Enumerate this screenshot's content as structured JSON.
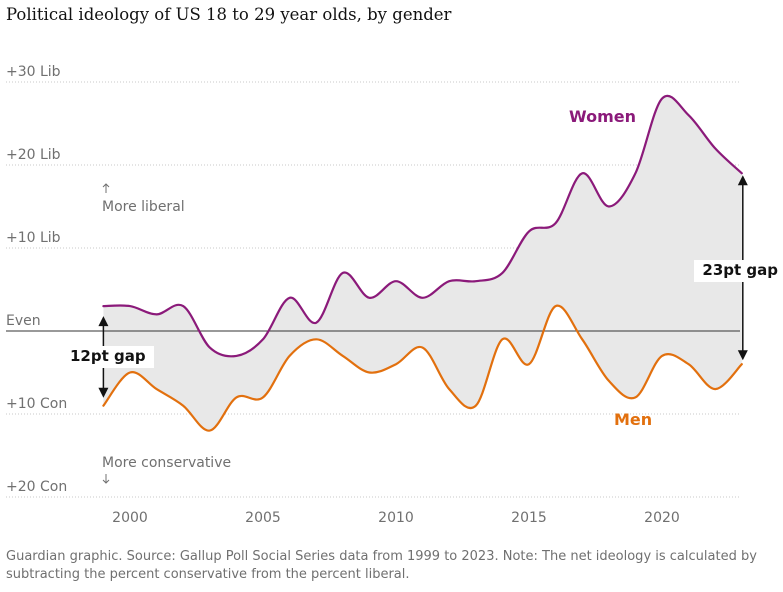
{
  "title": "Political ideology of US 18 to 29 year olds, by gender",
  "footnote": "Guardian graphic. Source: Gallup Poll Social Series data from 1999 to 2023. Note: The net ideology is calculated by subtracting the percent conservative from the percent liberal.",
  "colors": {
    "women": "#8b1a7a",
    "men": "#e2700e",
    "gap_fill": "#e8e8e8",
    "axis_text": "#707070",
    "gridline": "#c8c8c8",
    "zero_line": "#333333"
  },
  "annotations": {
    "more_liberal": "More liberal",
    "more_conservative": "More conservative",
    "gap_start": "12pt gap",
    "gap_end": "23pt gap"
  },
  "chart_data": {
    "type": "line",
    "title": "Political ideology of US 18 to 29 year olds, by gender",
    "xlabel": "",
    "ylabel": "",
    "xlim": [
      1998,
      2023.5
    ],
    "ylim": [
      -21,
      31
    ],
    "x_ticks": [
      2000,
      2005,
      2010,
      2015,
      2020
    ],
    "x_tick_labels": [
      "2000",
      "2005",
      "2010",
      "2015",
      "2020"
    ],
    "y_ticks": [
      30,
      20,
      10,
      0,
      -10,
      -20
    ],
    "y_tick_labels": [
      "+30 Lib",
      "+20 Lib",
      "+10 Lib",
      "Even",
      "+10 Con",
      "+20 Con"
    ],
    "series": [
      {
        "name": "Women",
        "x": [
          1999,
          2000,
          2001,
          2002,
          2003,
          2004,
          2005,
          2006,
          2007,
          2008,
          2009,
          2010,
          2011,
          2012,
          2013,
          2014,
          2015,
          2016,
          2017,
          2018,
          2019,
          2020,
          2021,
          2022,
          2023
        ],
        "values": [
          3,
          3,
          2,
          3,
          -2,
          -3,
          -1,
          4,
          1,
          7,
          4,
          6,
          4,
          6,
          6,
          7,
          12,
          13,
          19,
          15,
          19,
          28,
          26,
          22,
          19
        ]
      },
      {
        "name": "Men",
        "x": [
          1999,
          2000,
          2001,
          2002,
          2003,
          2004,
          2005,
          2006,
          2007,
          2008,
          2009,
          2010,
          2011,
          2012,
          2013,
          2014,
          2015,
          2016,
          2017,
          2018,
          2019,
          2020,
          2021,
          2022,
          2023
        ],
        "values": [
          -9,
          -5,
          -7,
          -9,
          -12,
          -8,
          -8,
          -3,
          -1,
          -3,
          -5,
          -4,
          -2,
          -7,
          -9,
          -1,
          -4,
          3,
          -1,
          -6,
          -8,
          -3,
          -4,
          -7,
          -4
        ]
      }
    ]
  }
}
